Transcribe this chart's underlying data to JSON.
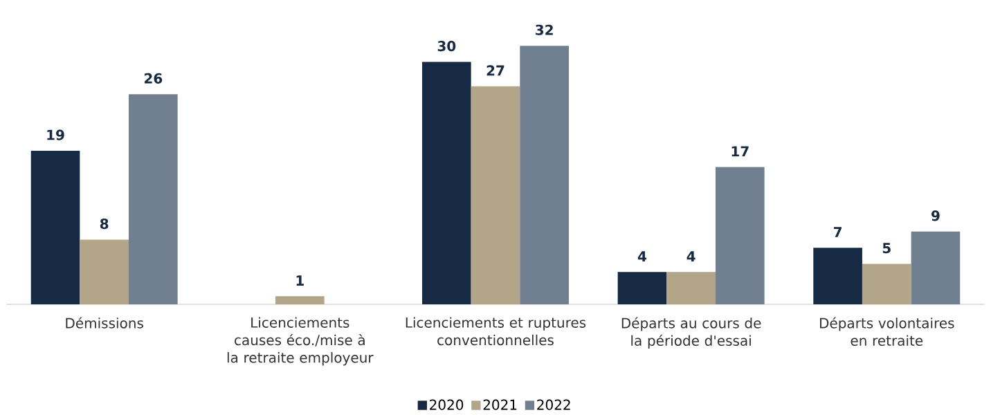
{
  "chart_data": {
    "type": "bar",
    "categories": [
      "Démissions",
      "Licenciements causes éco./mise à la retraite employeur",
      "Licenciements et ruptures conventionnelles",
      "Départs au cours de la période d'essai",
      "Départs volontaires en retraite"
    ],
    "series": [
      {
        "name": "2020",
        "color": "#172a44",
        "values": [
          19,
          null,
          30,
          4,
          7
        ]
      },
      {
        "name": "2021",
        "color": "#b3a588",
        "values": [
          8,
          1,
          27,
          4,
          5
        ]
      },
      {
        "name": "2022",
        "color": "#708090",
        "values": [
          26,
          null,
          32,
          17,
          9
        ]
      }
    ],
    "data_labels": true,
    "legend": "bottom"
  }
}
